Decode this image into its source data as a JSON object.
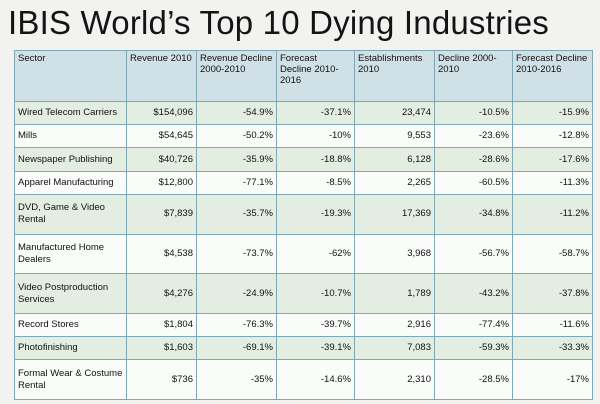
{
  "title": "IBIS World’s Top 10 Dying Industries",
  "table": {
    "headers": [
      "Sector",
      "Revenue 2010",
      "Revenue Decline 2000-2010",
      "Forecast Decline 2010-2016",
      "Establishments 2010",
      "Decline 2000-2010",
      "Forecast Decline 2010-2016"
    ],
    "rows": [
      [
        "Wired Telecom Carriers",
        "$154,096",
        "-54.9%",
        "-37.1%",
        "23,474",
        "-10.5%",
        "-15.9%"
      ],
      [
        "Mills",
        "$54,645",
        "-50.2%",
        "-10%",
        "9,553",
        "-23.6%",
        "-12.8%"
      ],
      [
        "Newspaper Publishing",
        "$40,726",
        "-35.9%",
        "-18.8%",
        "6,128",
        "-28.6%",
        "-17.6%"
      ],
      [
        "Apparel Manufacturing",
        "$12,800",
        "-77.1%",
        "-8.5%",
        "2,265",
        "-60.5%",
        "-11.3%"
      ],
      [
        "DVD, Game & Video Rental",
        "$7,839",
        "-35.7%",
        "-19.3%",
        "17,369",
        "-34.8%",
        "-11.2%"
      ],
      [
        "Manufactured Home Dealers",
        "$4,538",
        "-73.7%",
        "-62%",
        "3,968",
        "-56.7%",
        "-58.7%"
      ],
      [
        "Video Postproduction Services",
        "$4,276",
        "-24.9%",
        "-10.7%",
        "1,789",
        "-43.2%",
        "-37.8%"
      ],
      [
        "Record Stores",
        "$1,804",
        "-76.3%",
        "-39.7%",
        "2,916",
        "-77.4%",
        "-11.6%"
      ],
      [
        "Photofinishing",
        "$1,603",
        "-69.1%",
        "-39.1%",
        "7,083",
        "-59.3%",
        "-33.3%"
      ],
      [
        "Formal Wear & Costume Rental",
        "$736",
        "-35%",
        "-14.6%",
        "2,310",
        "-28.5%",
        "-17%"
      ]
    ]
  }
}
